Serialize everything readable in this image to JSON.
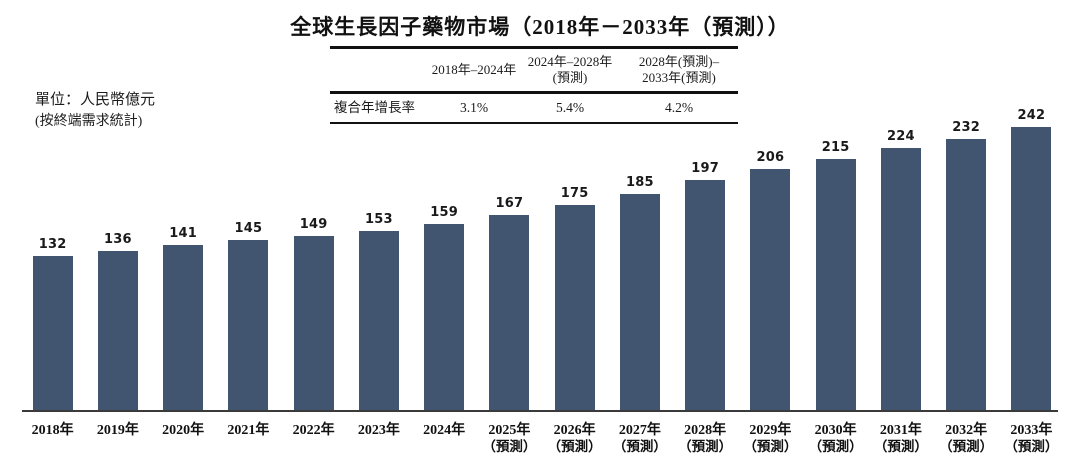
{
  "title": "全球生長因子藥物市場（2018年－2033年（預測））",
  "unit_note": {
    "line1": "單位：人民幣億元",
    "line2": "(按終端需求統計)"
  },
  "cagr_table": {
    "row_label": "複合年增長率",
    "columns": [
      {
        "label_line1": "2018年–2024年",
        "label_line2": "",
        "value": "3.1%"
      },
      {
        "label_line1": "2024年–2028年",
        "label_line2": "(預測)",
        "value": "5.4%"
      },
      {
        "label_line1": "2028年(預測)–",
        "label_line2": "2033年(預測)",
        "value": "4.2%"
      }
    ]
  },
  "chart_data": {
    "type": "bar",
    "title": "全球生長因子藥物市場（2018年－2033年（預測））",
    "unit": "人民幣億元（按終端需求統計）",
    "categories": [
      "2018年",
      "2019年",
      "2020年",
      "2021年",
      "2022年",
      "2023年",
      "2024年",
      "2025年",
      "2026年",
      "2027年",
      "2028年",
      "2029年",
      "2030年",
      "2031年",
      "2032年",
      "2033年"
    ],
    "category_notes": [
      "",
      "",
      "",
      "",
      "",
      "",
      "",
      "（預測）",
      "（預測）",
      "（預測）",
      "（預測）",
      "（預測）",
      "（預測）",
      "（預測）",
      "（預測）",
      "（預測）"
    ],
    "values": [
      132,
      136,
      141,
      145,
      149,
      153,
      159,
      167,
      175,
      185,
      197,
      206,
      215,
      224,
      232,
      242
    ],
    "cagr": [
      {
        "period": "2018年–2024年",
        "value": "3.1%"
      },
      {
        "period": "2024年–2028年(預測)",
        "value": "5.4%"
      },
      {
        "period": "2028年(預測)–2033年(預測)",
        "value": "4.2%"
      }
    ],
    "bar_color": "#415571",
    "value_labels": true,
    "grid": false,
    "legend": "none",
    "ylim": [
      0,
      250
    ]
  }
}
